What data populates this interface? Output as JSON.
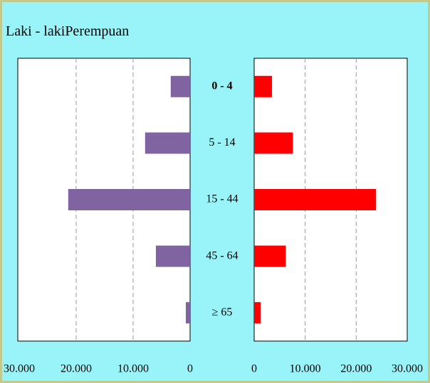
{
  "chart_data": {
    "type": "pyramid",
    "categories": [
      "0 - 4",
      "5 - 14",
      "15 - 44",
      "45 - 64",
      "≥ 65"
    ],
    "series": [
      {
        "name": "Laki - laki",
        "color": "#8064a2",
        "values": [
          3400,
          7900,
          21400,
          6000,
          750
        ]
      },
      {
        "name": "Perempuan",
        "color": "#ff0000",
        "values": [
          3500,
          7600,
          23900,
          6200,
          1300
        ]
      }
    ],
    "xlim": [
      0,
      30000
    ],
    "xticks": [
      0,
      {
        "value": 10000,
        "label": "10.000"
      },
      {
        "value": 20000,
        "label": "20.000"
      },
      {
        "value": 30000,
        "label": "30.000"
      }
    ],
    "grid": true
  }
}
